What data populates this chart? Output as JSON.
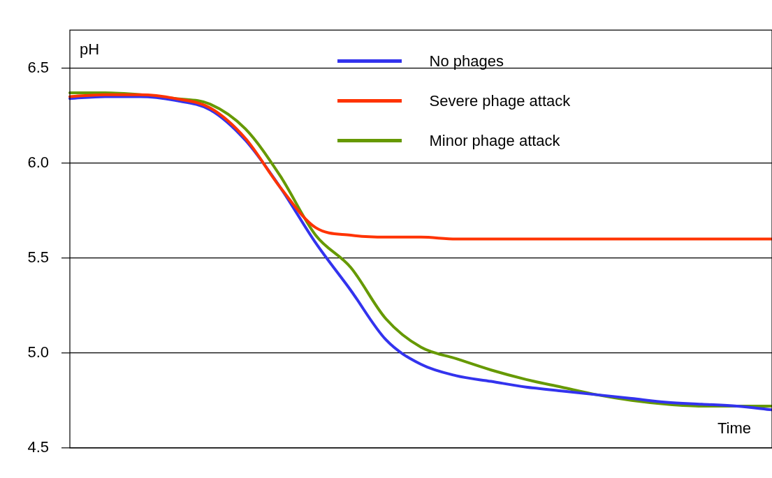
{
  "chart_data": {
    "type": "line",
    "xlabel": "Time",
    "ylabel": "pH",
    "categories": [
      null,
      null,
      null,
      null,
      null,
      null,
      null,
      null,
      null,
      null,
      null,
      null,
      null,
      null,
      null,
      null,
      null,
      null,
      null,
      null,
      null
    ],
    "series": [
      {
        "name": "No phages",
        "color": "#3333ee",
        "values": [
          6.34,
          6.35,
          6.35,
          6.33,
          6.28,
          6.12,
          5.87,
          5.58,
          5.33,
          5.07,
          4.94,
          4.88,
          4.85,
          4.82,
          4.8,
          4.78,
          4.76,
          4.74,
          4.73,
          4.72,
          4.7
        ]
      },
      {
        "name": "Severe phage attack",
        "color": "#ff3300",
        "values": [
          6.35,
          6.36,
          6.36,
          6.34,
          6.29,
          6.13,
          5.87,
          5.66,
          5.62,
          5.61,
          5.61,
          5.6,
          5.6,
          5.6,
          5.6,
          5.6,
          5.6,
          5.6,
          5.6,
          5.6,
          5.6
        ]
      },
      {
        "name": "Minor phage attack",
        "color": "#669900",
        "values": [
          6.37,
          6.37,
          6.36,
          6.34,
          6.31,
          6.18,
          5.93,
          5.62,
          5.45,
          5.18,
          5.03,
          4.97,
          4.91,
          4.86,
          4.82,
          4.78,
          4.75,
          4.73,
          4.72,
          4.72,
          4.72
        ]
      }
    ],
    "ylim": [
      4.5,
      6.7
    ],
    "yticks": [
      {
        "value": 4.5,
        "label": "4.5"
      },
      {
        "value": 5,
        "label": "5.0"
      },
      {
        "value": 5.5,
        "label": "5.5"
      },
      {
        "value": 6,
        "label": "6.0"
      },
      {
        "value": 6.5,
        "label": "6.5"
      }
    ],
    "grid": "y",
    "legend": "top",
    "tick_labels": "y",
    "line_style": "solid"
  }
}
